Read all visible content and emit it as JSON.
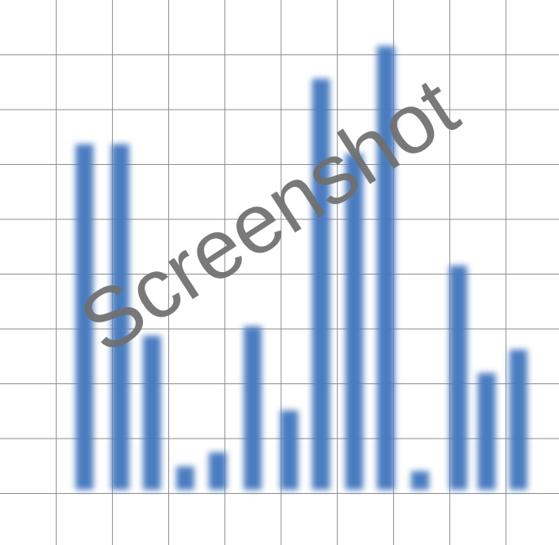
{
  "watermark": "Screenshot",
  "colors": {
    "bar": "#4a7cc0",
    "grid": "#8f8f8f",
    "background": "#ffffff",
    "watermark": "#6f6f6f"
  },
  "chart_data": {
    "type": "bar",
    "title": "",
    "xlabel": "",
    "ylabel": "",
    "grid": true,
    "legend": "none",
    "ylim": [
      0,
      1.0
    ],
    "categories": [
      "",
      "",
      "",
      "",
      "",
      "",
      "",
      "",
      "",
      "",
      "",
      "",
      "",
      ""
    ],
    "series": [
      {
        "values": [
          0.74,
          0.74,
          0.33,
          0.05,
          0.08,
          0.35,
          0.17,
          0.88,
          0.72,
          0.95,
          0.04,
          0.48,
          0.25,
          0.3
        ]
      }
    ]
  }
}
